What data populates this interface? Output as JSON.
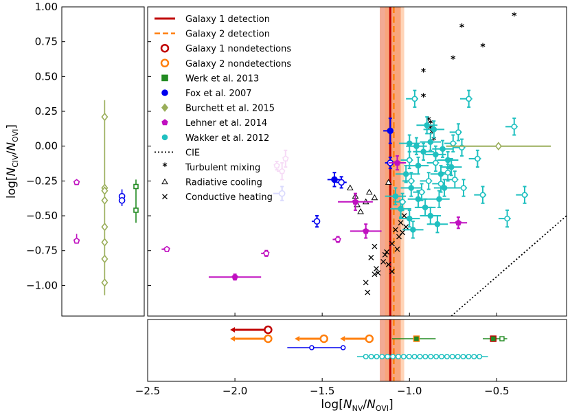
{
  "chart_data": {
    "type": "scatter",
    "xlabel": "log[N_NV/N_OVI]",
    "ylabel": "log[N_CIV/N_OVI]",
    "xlim": [
      -2.5,
      -0.1
    ],
    "ylim": [
      -1.22,
      1.0
    ],
    "xticks": [
      -2.5,
      -2.0,
      -1.5,
      -1.0,
      -0.5
    ],
    "yticks": [
      1.0,
      0.75,
      0.5,
      0.25,
      0.0,
      -0.25,
      -0.5,
      -0.75,
      -1.0
    ],
    "xtick_labels": [
      "−2.5",
      "−2.0",
      "−1.5",
      "−1.0",
      "−0.5"
    ],
    "ytick_labels": [
      "1.00",
      "0.75",
      "0.50",
      "0.25",
      "0.00",
      "−0.25",
      "−0.50",
      "−0.75",
      "−1.00"
    ],
    "xlabel_parts": {
      "pre": "log[",
      "n1": "N",
      "s1": "NV",
      "mid": "/",
      "n2": "N",
      "s2": "OVI",
      "post": "]"
    },
    "ylabel_parts": {
      "pre": "log[",
      "n1": "N",
      "s1": "CIV",
      "mid": "/",
      "n2": "N",
      "s2": "OVI",
      "post": "]"
    },
    "galaxy1_detection": {
      "x": -1.11,
      "band": [
        -1.17,
        -1.05
      ],
      "color": "#c00000"
    },
    "galaxy2_detection": {
      "x": -1.09,
      "band": [
        -1.14,
        -1.03
      ],
      "color": "#ff7f0e"
    },
    "legend": [
      {
        "label": "Galaxy 1 detection",
        "marker": "line",
        "color": "#c00000"
      },
      {
        "label": "Galaxy 2 detection",
        "marker": "dash",
        "color": "#ff7f0e"
      },
      {
        "label": "Galaxy 1 nondetections",
        "marker": "open-circle",
        "color": "#c00000"
      },
      {
        "label": "Galaxy 2 nondetections",
        "marker": "open-circle",
        "color": "#ff7f0e"
      },
      {
        "label": "Werk et al. 2013",
        "marker": "square",
        "color": "#228b22"
      },
      {
        "label": "Fox et al. 2007",
        "marker": "circle",
        "color": "#0000ee"
      },
      {
        "label": "Burchett et al. 2015",
        "marker": "diamond",
        "color": "#9aae5a"
      },
      {
        "label": "Lehner et al. 2014",
        "marker": "pentagon",
        "color": "#c010c0"
      },
      {
        "label": "Wakker et al. 2012",
        "marker": "hexagon",
        "color": "#20c0c0"
      },
      {
        "label": "CIE",
        "marker": "dotted",
        "color": "#000000"
      },
      {
        "label": "Turbulent mixing",
        "marker": "star",
        "color": "#000000"
      },
      {
        "label": "Radiative cooling",
        "marker": "triangle",
        "color": "#000000"
      },
      {
        "label": "Conductive heating",
        "marker": "x",
        "color": "#000000"
      }
    ],
    "series": {
      "turbulent_mixing": [
        [
          -0.4,
          0.93
        ],
        [
          -0.7,
          0.85
        ],
        [
          -0.58,
          0.71
        ],
        [
          -0.75,
          0.62
        ],
        [
          -0.92,
          0.53
        ],
        [
          -0.92,
          0.35
        ],
        [
          -0.89,
          0.18
        ],
        [
          -0.88,
          0.16
        ],
        [
          -0.88,
          0.12
        ],
        [
          -0.87,
          0.09
        ],
        [
          -0.86,
          0.04
        ]
      ],
      "radiative_cooling": [
        [
          -1.34,
          -0.3
        ],
        [
          -1.31,
          -0.36
        ],
        [
          -1.28,
          -0.47
        ],
        [
          -1.3,
          -0.42
        ],
        [
          -1.23,
          -0.33
        ],
        [
          -1.2,
          -0.37
        ],
        [
          -1.12,
          -0.26
        ],
        [
          -1.25,
          -0.4
        ]
      ],
      "conductive_heating": [
        [
          -1.25,
          -0.98
        ],
        [
          -1.24,
          -1.05
        ],
        [
          -1.22,
          -0.8
        ],
        [
          -1.2,
          -0.92
        ],
        [
          -1.19,
          -0.88
        ],
        [
          -1.18,
          -0.91
        ],
        [
          -1.2,
          -0.72
        ],
        [
          -1.15,
          -0.83
        ],
        [
          -1.14,
          -0.78
        ],
        [
          -1.12,
          -0.85
        ],
        [
          -1.1,
          -0.7
        ],
        [
          -1.08,
          -0.6
        ],
        [
          -1.06,
          -0.65
        ],
        [
          -1.05,
          -0.55
        ],
        [
          -1.03,
          -0.5
        ],
        [
          -1.1,
          -0.9
        ],
        [
          -1.13,
          -0.76
        ],
        [
          -1.07,
          -0.74
        ],
        [
          -1.04,
          -0.62
        ],
        [
          -1.02,
          -0.58
        ]
      ],
      "fox2007": [
        {
          "x": -1.11,
          "y": 0.11,
          "xerr": [
            0.04,
            0.0
          ],
          "yerr": [
            0.09,
            0.09
          ],
          "filled": true
        },
        {
          "x": -1.43,
          "y": -0.24,
          "xerr": [
            0.04,
            0.04
          ],
          "yerr": [
            0.05,
            0.05
          ],
          "filled": true
        },
        {
          "x": -1.39,
          "y": -0.26,
          "xerr": [
            0.03,
            0.03
          ],
          "yerr": [
            0.04,
            0.04
          ],
          "filled": false
        },
        {
          "x": -1.73,
          "y": -0.34,
          "xerr": [
            0.05,
            0.0
          ],
          "yerr": [
            0.05,
            0.05
          ],
          "filled": false
        },
        {
          "x": -1.53,
          "y": -0.54,
          "xerr": [
            0.03,
            0.0
          ],
          "yerr": [
            0.04,
            0.04
          ],
          "filled": false
        },
        {
          "x": -1.11,
          "y": -0.12,
          "xerr": [
            0.03,
            0.0
          ],
          "yerr": [
            0.04,
            0.04
          ],
          "filled": false
        }
      ],
      "lehner2014": [
        {
          "x": -2.0,
          "y": -0.94,
          "xerr": [
            0.15,
            0.15
          ],
          "yerr": [
            0.02,
            0.02
          ],
          "filled": true
        },
        {
          "x": -1.25,
          "y": -0.61,
          "xerr": [
            0.09,
            0.09
          ],
          "yerr": [
            0.05,
            0.05
          ],
          "filled": true
        },
        {
          "x": -1.31,
          "y": -0.4,
          "xerr": [
            0.1,
            0.1
          ],
          "yerr": [
            0.06,
            0.06
          ],
          "filled": true
        },
        {
          "x": -1.07,
          "y": -0.12,
          "xerr": [
            0.05,
            0.05
          ],
          "yerr": [
            0.05,
            0.05
          ],
          "filled": true
        },
        {
          "x": -0.72,
          "y": -0.55,
          "xerr": [
            0.05,
            0.05
          ],
          "yerr": [
            0.04,
            0.04
          ],
          "filled": true
        },
        {
          "x": -2.39,
          "y": -0.74,
          "xerr": [
            0.03,
            0.0
          ],
          "yerr": [
            0.01,
            0.01
          ],
          "filled": false
        },
        {
          "x": -1.82,
          "y": -0.77,
          "xerr": [
            0.03,
            0.0
          ],
          "yerr": [
            0.02,
            0.02
          ],
          "filled": false
        },
        {
          "x": -1.41,
          "y": -0.67,
          "xerr": [
            0.03,
            0.0
          ],
          "yerr": [
            0.02,
            0.02
          ],
          "filled": false
        },
        {
          "x": -1.73,
          "y": -0.18,
          "xerr": [
            0.03,
            0.0
          ],
          "yerr": [
            0.06,
            0.06
          ],
          "filled": false
        },
        {
          "x": -1.71,
          "y": -0.09,
          "xerr": [
            0.0,
            0.0
          ],
          "yerr": [
            0.06,
            0.06
          ],
          "filled": false
        },
        {
          "x": -1.76,
          "y": -0.14,
          "xerr": [
            0.0,
            0.0
          ],
          "yerr": [
            0.03,
            0.03
          ],
          "filled": false
        }
      ],
      "burchett2015": [
        {
          "x": -0.49,
          "y": 0.0,
          "xerr": [
            0.3,
            0.3
          ],
          "yerr": [
            0.0,
            0.0
          ],
          "filled": false
        }
      ],
      "wakker_filled": [
        [
          -1.0,
          0.02
        ],
        [
          -0.96,
          0.0
        ],
        [
          -0.92,
          -0.04
        ],
        [
          -0.88,
          0.03
        ],
        [
          -0.85,
          -0.06
        ],
        [
          -0.81,
          -0.02
        ],
        [
          -0.78,
          -0.1
        ],
        [
          -0.95,
          -0.14
        ],
        [
          -1.02,
          -0.2
        ],
        [
          -0.99,
          -0.3
        ],
        [
          -0.95,
          -0.38
        ],
        [
          -0.91,
          -0.44
        ],
        [
          -0.88,
          -0.5
        ],
        [
          -0.84,
          -0.56
        ],
        [
          -0.98,
          -0.6
        ],
        [
          -1.05,
          -0.45
        ],
        [
          -1.08,
          -0.36
        ],
        [
          -0.82,
          -0.2
        ],
        [
          -0.8,
          -0.3
        ],
        [
          -0.9,
          0.15
        ],
        [
          -0.86,
          0.12
        ],
        [
          -0.76,
          -0.15
        ],
        [
          -0.83,
          -0.38
        ],
        [
          -1.0,
          -0.52
        ]
      ],
      "wakker_open": [
        [
          -0.97,
          0.34
        ],
        [
          -0.66,
          0.34
        ],
        [
          -0.4,
          0.14
        ],
        [
          -0.72,
          0.1
        ],
        [
          -0.75,
          0.02
        ],
        [
          -0.7,
          -0.01
        ],
        [
          -0.61,
          -0.09
        ],
        [
          -0.85,
          -0.12
        ],
        [
          -0.78,
          -0.19
        ],
        [
          -0.74,
          -0.24
        ],
        [
          -0.69,
          -0.3
        ],
        [
          -0.58,
          -0.35
        ],
        [
          -0.34,
          -0.35
        ],
        [
          -0.44,
          -0.52
        ],
        [
          -0.99,
          -0.25
        ],
        [
          -1.04,
          -0.4
        ],
        [
          -0.89,
          -0.25
        ],
        [
          -0.82,
          -0.27
        ],
        [
          -1.0,
          -0.1
        ],
        [
          -0.93,
          -0.33
        ]
      ],
      "left_panel": [
        {
          "group": "lehner",
          "y": -0.26,
          "dx": 0.18,
          "filled": false
        },
        {
          "group": "lehner",
          "y": -0.68,
          "dx": 0.18,
          "filled": false
        },
        {
          "group": "burchett",
          "y": 0.21,
          "dx": 0.52,
          "filled": false
        },
        {
          "group": "burchett",
          "y": -0.3,
          "dx": 0.52,
          "filled": false
        },
        {
          "group": "burchett",
          "y": -0.32,
          "dx": 0.52,
          "filled": false
        },
        {
          "group": "burchett",
          "y": -0.39,
          "dx": 0.52,
          "filled": false
        },
        {
          "group": "burchett",
          "y": -0.58,
          "dx": 0.52,
          "filled": false
        },
        {
          "group": "burchett",
          "y": -0.69,
          "dx": 0.52,
          "filled": false
        },
        {
          "group": "burchett",
          "y": -0.81,
          "dx": 0.52,
          "filled": false
        },
        {
          "group": "burchett",
          "y": -0.98,
          "dx": 0.52,
          "filled": false
        },
        {
          "group": "fox",
          "y": -0.36,
          "dx": 0.73,
          "filled": false
        },
        {
          "group": "fox",
          "y": -0.39,
          "dx": 0.73,
          "filled": false
        },
        {
          "group": "werk",
          "y": -0.29,
          "dx": 0.9,
          "filled": false
        },
        {
          "group": "werk",
          "y": -0.46,
          "dx": 0.9,
          "filled": false
        }
      ],
      "bottom_panel": [
        {
          "group": "g1",
          "x": -1.81,
          "row": 0
        },
        {
          "group": "g2",
          "x": -1.81,
          "row": 1
        },
        {
          "group": "g2",
          "x": -1.49,
          "row": 1
        },
        {
          "group": "g2",
          "x": -1.23,
          "row": 1
        },
        {
          "group": "werk_f",
          "x": -0.96,
          "row": 1
        },
        {
          "group": "werk_o",
          "x": -0.96,
          "row": 1
        },
        {
          "group": "werk_f",
          "x": -0.52,
          "row": 1
        },
        {
          "group": "werk_o",
          "x": -0.47,
          "row": 1
        },
        {
          "group": "fox_o",
          "x": -1.56,
          "row": 2
        },
        {
          "group": "fox_o",
          "x": -1.38,
          "row": 2
        }
      ]
    }
  }
}
